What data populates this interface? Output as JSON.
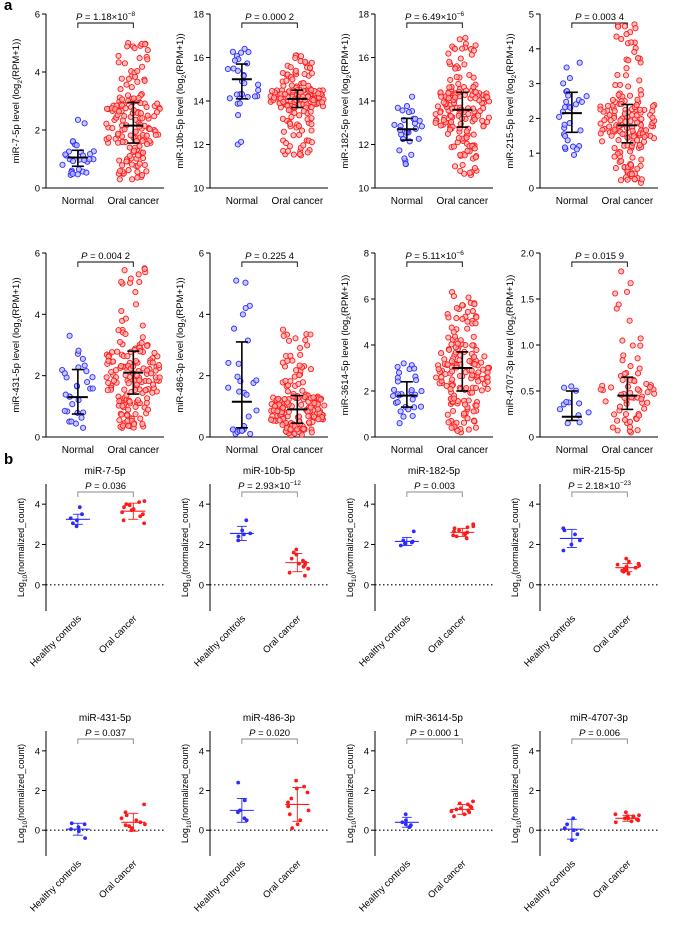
{
  "panels": {
    "a": "a",
    "b": "b"
  },
  "colors": {
    "normal": "#2b2bff",
    "normal_fill": "#b9b9ff",
    "cancer": "#ff1a1a",
    "cancer_fill": "#ffb0b0",
    "axis": "#000000",
    "bar": "#000000"
  },
  "chart_data": [
    {
      "type": "scatter",
      "panel": "a",
      "subtype": "dot-plot",
      "ylabel_main": "miR-7-5p level (log",
      "ylabel_sub": "2",
      "ylabel_tail": "(RPM+1))",
      "ylim": [
        0,
        6
      ],
      "yticks": [
        0,
        2,
        4,
        6
      ],
      "categories": [
        "Normal",
        "Oral cancer"
      ],
      "p_label": "P",
      "p_value": " = 1.18×10",
      "p_exp": "−8",
      "groups": [
        {
          "n": 30,
          "median": 1.05,
          "q1": 0.75,
          "q3": 1.3,
          "min": 0.45,
          "max": 2.35
        },
        {
          "n": 170,
          "median": 2.15,
          "q1": 1.55,
          "q3": 2.95,
          "min": 0.3,
          "max": 5.0
        }
      ]
    },
    {
      "type": "scatter",
      "panel": "a",
      "subtype": "dot-plot",
      "ylabel_main": "miR-10b-5p level (log",
      "ylabel_sub": "2",
      "ylabel_tail": "(RPM+1))",
      "ylim": [
        10,
        18
      ],
      "yticks": [
        10,
        12,
        14,
        16,
        18
      ],
      "categories": [
        "Normal",
        "Oral cancer"
      ],
      "p_label": "P",
      "p_value": " = 0.000 2",
      "p_exp": "",
      "groups": [
        {
          "n": 30,
          "median": 15.0,
          "q1": 14.1,
          "q3": 15.7,
          "min": 12.0,
          "max": 16.4
        },
        {
          "n": 170,
          "median": 14.1,
          "q1": 13.7,
          "q3": 14.5,
          "min": 11.5,
          "max": 16.1
        }
      ]
    },
    {
      "type": "scatter",
      "panel": "a",
      "subtype": "dot-plot",
      "ylabel_main": "miR-182-5p level (log",
      "ylabel_sub": "2",
      "ylabel_tail": "(RPM+1))",
      "ylim": [
        10,
        18
      ],
      "yticks": [
        10,
        12,
        14,
        16,
        18
      ],
      "categories": [
        "Normal",
        "Oral cancer"
      ],
      "p_label": "P",
      "p_value": " = 6.49×10",
      "p_exp": "−6",
      "groups": [
        {
          "n": 30,
          "median": 12.7,
          "q1": 12.2,
          "q3": 13.2,
          "min": 11.1,
          "max": 14.2
        },
        {
          "n": 170,
          "median": 13.6,
          "q1": 12.8,
          "q3": 14.4,
          "min": 10.6,
          "max": 16.9
        }
      ]
    },
    {
      "type": "scatter",
      "panel": "a",
      "subtype": "dot-plot",
      "ylabel_main": "miR-215-5p level (log",
      "ylabel_sub": "2",
      "ylabel_tail": "(RPM+1))",
      "ylim": [
        0,
        5
      ],
      "yticks": [
        0,
        1,
        2,
        3,
        4,
        5
      ],
      "categories": [
        "Normal",
        "Oral cancer"
      ],
      "p_label": "P",
      "p_value": " = 0.003 4",
      "p_exp": "",
      "groups": [
        {
          "n": 30,
          "median": 2.15,
          "q1": 1.6,
          "q3": 2.75,
          "min": 0.95,
          "max": 3.6
        },
        {
          "n": 170,
          "median": 1.8,
          "q1": 1.3,
          "q3": 2.4,
          "min": 0.15,
          "max": 4.7
        }
      ]
    },
    {
      "type": "scatter",
      "panel": "a",
      "subtype": "dot-plot",
      "ylabel_main": "miR-431-5p level (log",
      "ylabel_sub": "2",
      "ylabel_tail": "(RPM+1))",
      "ylim": [
        0,
        6
      ],
      "yticks": [
        0,
        2,
        4,
        6
      ],
      "categories": [
        "Normal",
        "Oral cancer"
      ],
      "p_label": "P",
      "p_value": " = 0.004 2",
      "p_exp": "",
      "groups": [
        {
          "n": 30,
          "median": 1.3,
          "q1": 0.75,
          "q3": 2.2,
          "min": 0.3,
          "max": 3.3
        },
        {
          "n": 170,
          "median": 2.1,
          "q1": 1.4,
          "q3": 2.8,
          "min": 0.3,
          "max": 5.5
        }
      ]
    },
    {
      "type": "scatter",
      "panel": "a",
      "subtype": "dot-plot",
      "ylabel_main": "miR-486-3p level (log",
      "ylabel_sub": "2",
      "ylabel_tail": "(RPM+1))",
      "ylim": [
        0,
        6
      ],
      "yticks": [
        0,
        2,
        4,
        6
      ],
      "categories": [
        "Normal",
        "Oral cancer"
      ],
      "p_label": "P",
      "p_value": " = 0.225 4",
      "p_exp": "",
      "groups": [
        {
          "n": 30,
          "median": 1.15,
          "q1": 0.3,
          "q3": 3.1,
          "min": 0.1,
          "max": 5.1
        },
        {
          "n": 170,
          "median": 0.9,
          "q1": 0.45,
          "q3": 1.35,
          "min": 0.05,
          "max": 3.5
        }
      ]
    },
    {
      "type": "scatter",
      "panel": "a",
      "subtype": "dot-plot",
      "ylabel_main": "miR-3614-5p level (log",
      "ylabel_sub": "2",
      "ylabel_tail": "(RPM+1))",
      "ylim": [
        0,
        8
      ],
      "yticks": [
        0,
        2,
        4,
        6,
        8
      ],
      "categories": [
        "Normal",
        "Oral cancer"
      ],
      "p_label": "P",
      "p_value": " = 5.11×10",
      "p_exp": "−6",
      "groups": [
        {
          "n": 30,
          "median": 1.8,
          "q1": 1.3,
          "q3": 2.4,
          "min": 0.6,
          "max": 3.2
        },
        {
          "n": 170,
          "median": 3.0,
          "q1": 2.0,
          "q3": 3.7,
          "min": 0.2,
          "max": 6.3
        }
      ]
    },
    {
      "type": "scatter",
      "panel": "a",
      "subtype": "dot-plot",
      "ylabel_main": "miR-4707-3p level (log",
      "ylabel_sub": "2",
      "ylabel_tail": "(RPM+1))",
      "ylim": [
        0,
        2.0
      ],
      "yticks": [
        0,
        0.5,
        1.0,
        1.5,
        2.0
      ],
      "ytick_labels": [
        "0",
        "0.5",
        "1.0",
        "1.5",
        "2.0"
      ],
      "categories": [
        "Normal",
        "Oral cancer"
      ],
      "p_label": "P",
      "p_value": " = 0.015 9",
      "p_exp": "",
      "groups": [
        {
          "n": 12,
          "median": 0.22,
          "q1": 0.18,
          "q3": 0.5,
          "min": 0.15,
          "max": 0.55
        },
        {
          "n": 70,
          "median": 0.45,
          "q1": 0.3,
          "q3": 0.65,
          "min": 0.05,
          "max": 1.8
        }
      ]
    },
    {
      "type": "scatter",
      "panel": "b",
      "subtype": "dot-plot",
      "title": "miR-7-5p",
      "ylabel_main": "Log",
      "ylabel_sub": "10",
      "ylabel_tail": "(normalized_count)",
      "ylim": [
        -1.3,
        5
      ],
      "yticks": [
        0,
        2,
        4
      ],
      "refline": 0,
      "categories": [
        "Healthy controls",
        "Oral cancer"
      ],
      "p_label": "P",
      "p_value": " = 0.036",
      "p_exp": "",
      "groups": [
        {
          "n": 6,
          "mean": 3.25,
          "sd": 0.25,
          "points": [
            2.9,
            3.05,
            3.2,
            3.3,
            3.5,
            3.85
          ]
        },
        {
          "n": 12,
          "mean": 3.65,
          "sd": 0.4,
          "points": [
            3.05,
            3.2,
            3.4,
            3.5,
            3.6,
            3.7,
            3.75,
            3.85,
            3.95,
            4.0,
            4.1,
            4.15
          ]
        }
      ]
    },
    {
      "type": "scatter",
      "panel": "b",
      "subtype": "dot-plot",
      "title": "miR-10b-5p",
      "ylabel_main": "Log",
      "ylabel_sub": "10",
      "ylabel_tail": "(normalized_count)",
      "ylim": [
        -1.3,
        5
      ],
      "yticks": [
        0,
        2,
        4
      ],
      "refline": 0,
      "categories": [
        "Healthy controls",
        "Oral cancer"
      ],
      "p_label": "P",
      "p_value": " = 2.93×10",
      "p_exp": "−12",
      "groups": [
        {
          "n": 6,
          "mean": 2.55,
          "sd": 0.35,
          "points": [
            2.2,
            2.4,
            2.5,
            2.55,
            2.7,
            3.2
          ]
        },
        {
          "n": 12,
          "mean": 1.1,
          "sd": 0.45,
          "points": [
            0.45,
            0.6,
            0.8,
            0.9,
            1.0,
            1.05,
            1.1,
            1.2,
            1.3,
            1.5,
            1.6,
            1.75
          ]
        }
      ]
    },
    {
      "type": "scatter",
      "panel": "b",
      "subtype": "dot-plot",
      "title": "miR-182-5p",
      "ylabel_main": "Log",
      "ylabel_sub": "10",
      "ylabel_tail": "(normalized_count)",
      "ylim": [
        -1.3,
        5
      ],
      "yticks": [
        0,
        2,
        4
      ],
      "refline": 0,
      "categories": [
        "Healthy controls",
        "Oral cancer"
      ],
      "p_label": "P",
      "p_value": " = 0.003",
      "p_exp": "",
      "groups": [
        {
          "n": 6,
          "mean": 2.15,
          "sd": 0.2,
          "points": [
            1.95,
            2.05,
            2.1,
            2.15,
            2.2,
            2.65
          ]
        },
        {
          "n": 12,
          "mean": 2.6,
          "sd": 0.2,
          "points": [
            2.3,
            2.4,
            2.45,
            2.5,
            2.55,
            2.6,
            2.65,
            2.7,
            2.8,
            2.85,
            2.9,
            3.0
          ]
        }
      ]
    },
    {
      "type": "scatter",
      "panel": "b",
      "subtype": "dot-plot",
      "title": "miR-215-5p",
      "ylabel_main": "Log",
      "ylabel_sub": "10",
      "ylabel_tail": "(normalized_count)",
      "ylim": [
        -1.3,
        5
      ],
      "yticks": [
        0,
        2,
        4
      ],
      "refline": 0,
      "categories": [
        "Healthy controls",
        "Oral cancer"
      ],
      "p_label": "P",
      "p_value": " = 2.18×10",
      "p_exp": "−23",
      "groups": [
        {
          "n": 6,
          "mean": 2.3,
          "sd": 0.45,
          "points": [
            1.7,
            2.0,
            2.2,
            2.5,
            2.7,
            2.8
          ]
        },
        {
          "n": 12,
          "mean": 0.85,
          "sd": 0.2,
          "points": [
            0.55,
            0.65,
            0.7,
            0.75,
            0.8,
            0.85,
            0.9,
            0.95,
            1.0,
            1.05,
            1.15,
            1.3
          ]
        }
      ]
    },
    {
      "type": "scatter",
      "panel": "b",
      "subtype": "dot-plot",
      "title": "miR-431-5p",
      "ylabel_main": "Log",
      "ylabel_sub": "10",
      "ylabel_tail": "(normalized_count)",
      "ylim": [
        -1.3,
        5
      ],
      "yticks": [
        0,
        2,
        4
      ],
      "refline": 0,
      "categories": [
        "Healthy controls",
        "Oral cancer"
      ],
      "p_label": "P",
      "p_value": " = 0.037",
      "p_exp": "",
      "groups": [
        {
          "n": 6,
          "mean": 0.05,
          "sd": 0.3,
          "points": [
            -0.4,
            -0.05,
            0.05,
            0.15,
            0.3,
            0.35
          ]
        },
        {
          "n": 12,
          "mean": 0.4,
          "sd": 0.45,
          "points": [
            0.0,
            0.05,
            0.1,
            0.2,
            0.25,
            0.3,
            0.4,
            0.5,
            0.6,
            0.75,
            0.9,
            1.3
          ]
        }
      ]
    },
    {
      "type": "scatter",
      "panel": "b",
      "subtype": "dot-plot",
      "title": "miR-486-3p",
      "ylabel_main": "Log",
      "ylabel_sub": "10",
      "ylabel_tail": "(normalized_count)",
      "ylim": [
        -1.3,
        5
      ],
      "yticks": [
        0,
        2,
        4
      ],
      "refline": 0,
      "categories": [
        "Healthy controls",
        "Oral cancer"
      ],
      "p_label": "P",
      "p_value": " = 0.020",
      "p_exp": "",
      "groups": [
        {
          "n": 6,
          "mean": 1.0,
          "sd": 0.6,
          "points": [
            0.5,
            0.6,
            0.9,
            1.0,
            1.5,
            2.4
          ]
        },
        {
          "n": 12,
          "mean": 1.3,
          "sd": 0.85,
          "points": [
            0.1,
            0.3,
            0.5,
            0.8,
            1.0,
            1.2,
            1.4,
            1.6,
            1.9,
            2.1,
            2.2,
            2.5
          ]
        }
      ]
    },
    {
      "type": "scatter",
      "panel": "b",
      "subtype": "dot-plot",
      "title": "miR-3614-5p",
      "ylabel_main": "Log",
      "ylabel_sub": "10",
      "ylabel_tail": "(normalized_count)",
      "ylim": [
        -1.3,
        5
      ],
      "yticks": [
        0,
        2,
        4
      ],
      "refline": 0,
      "categories": [
        "Healthy controls",
        "Oral cancer"
      ],
      "p_label": "P",
      "p_value": " = 0.000 1",
      "p_exp": "",
      "groups": [
        {
          "n": 6,
          "mean": 0.4,
          "sd": 0.25,
          "points": [
            0.15,
            0.25,
            0.3,
            0.4,
            0.5,
            0.8
          ]
        },
        {
          "n": 12,
          "mean": 1.05,
          "sd": 0.25,
          "points": [
            0.7,
            0.8,
            0.9,
            0.95,
            1.0,
            1.05,
            1.1,
            1.15,
            1.2,
            1.3,
            1.35,
            1.45
          ]
        }
      ]
    },
    {
      "type": "scatter",
      "panel": "b",
      "subtype": "dot-plot",
      "title": "miR-4707-3p",
      "ylabel_main": "Log",
      "ylabel_sub": "10",
      "ylabel_tail": "(normalized_count)",
      "ylim": [
        -1.3,
        5
      ],
      "yticks": [
        0,
        2,
        4
      ],
      "refline": 0,
      "categories": [
        "Healthy controls",
        "Oral cancer"
      ],
      "p_label": "P",
      "p_value": " = 0.006",
      "p_exp": "",
      "groups": [
        {
          "n": 6,
          "mean": 0.05,
          "sd": 0.5,
          "points": [
            -0.5,
            -0.2,
            0.0,
            0.1,
            0.3,
            0.6
          ]
        },
        {
          "n": 12,
          "mean": 0.6,
          "sd": 0.15,
          "points": [
            0.4,
            0.45,
            0.5,
            0.55,
            0.6,
            0.6,
            0.65,
            0.7,
            0.7,
            0.75,
            0.8,
            0.9
          ]
        }
      ]
    }
  ]
}
